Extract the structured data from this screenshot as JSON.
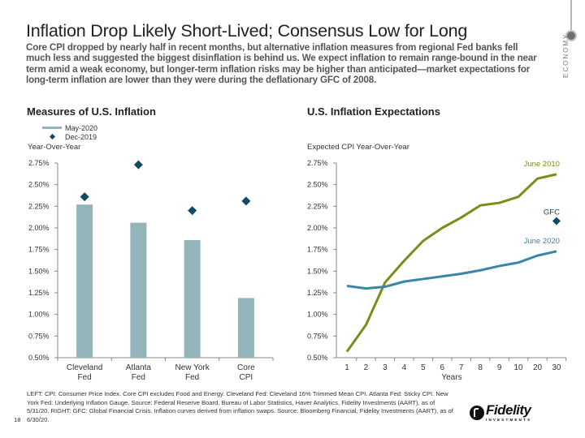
{
  "header": {
    "title": "Inflation Drop Likely Short-Lived; Consensus Low for Long",
    "subtitle": "Core CPI dropped by nearly half in recent months, but alternative inflation measures from regional Fed banks fell much less and suggested the biggest disinflation is behind us. We expect inflation to remain range-bound in the near term amid a weak economy, but longer-term inflation risks may be higher than anticipated—market expectations for long-term inflation are lower than they were during the deflationary GFC of 2008.",
    "section_label": "ECONOMY"
  },
  "colors": {
    "bar": "#93b4b8",
    "diamond": "#124a66",
    "june2010": "#7a8c1c",
    "june2020": "#3a86a8",
    "gfc": "#124a66",
    "axis": "#888888"
  },
  "chart_data": [
    {
      "type": "bar",
      "title": "Measures of U.S. Inflation",
      "ylabel": "Year-Over-Year",
      "xlabel": "",
      "ylim": [
        0.5,
        2.75
      ],
      "yticks": [
        "2.75%",
        "2.50%",
        "2.25%",
        "2.00%",
        "1.75%",
        "1.50%",
        "1.25%",
        "1.00%",
        "0.75%",
        "0.50%"
      ],
      "ytick_values": [
        2.75,
        2.5,
        2.25,
        2.0,
        1.75,
        1.5,
        1.25,
        1.0,
        0.75,
        0.5
      ],
      "categories": [
        [
          "Cleveland",
          "Fed"
        ],
        [
          "Atlanta",
          "Fed"
        ],
        [
          "New York",
          "Fed"
        ],
        [
          "Core",
          "CPI"
        ]
      ],
      "legend": {
        "placement": "top-left",
        "entries": [
          {
            "name": "May-2020",
            "marker": "bar"
          },
          {
            "name": "Dec-2019",
            "marker": "diamond"
          }
        ]
      },
      "series": [
        {
          "name": "May-2020",
          "kind": "bar",
          "values": [
            2.27,
            2.06,
            1.86,
            1.19
          ]
        },
        {
          "name": "Dec-2019",
          "kind": "diamond",
          "values": [
            2.36,
            2.73,
            2.2,
            2.31
          ]
        }
      ]
    },
    {
      "type": "line",
      "title": "U.S. Inflation Expectations",
      "ylabel": "Expected CPI Year-Over-Year",
      "xlabel": "Years",
      "ylim": [
        0.5,
        2.75
      ],
      "yticks": [
        "2.75%",
        "2.50%",
        "2.25%",
        "2.00%",
        "1.75%",
        "1.50%",
        "1.25%",
        "1.00%",
        "0.75%",
        "0.50%"
      ],
      "ytick_values": [
        2.75,
        2.5,
        2.25,
        2.0,
        1.75,
        1.5,
        1.25,
        1.0,
        0.75,
        0.5
      ],
      "categories": [
        "1",
        "2",
        "3",
        "4",
        "5",
        "6",
        "7",
        "8",
        "9",
        "10",
        "20",
        "30"
      ],
      "series": [
        {
          "name": "June 2010",
          "label": "June 2010",
          "values": [
            0.57,
            0.88,
            1.37,
            1.62,
            1.85,
            2.0,
            2.12,
            2.26,
            2.29,
            2.36,
            2.57,
            2.62
          ]
        },
        {
          "name": "June 2020",
          "label": "June 2020",
          "values": [
            1.33,
            1.3,
            1.32,
            1.38,
            1.41,
            1.44,
            1.47,
            1.51,
            1.56,
            1.6,
            1.68,
            1.73
          ]
        },
        {
          "name": "GFC",
          "label": "GFC",
          "kind": "diamond",
          "x": "30",
          "value": 2.08
        }
      ]
    }
  ],
  "footnote": "LEFT: CPI: Consumer Price Index. Core CPI excludes Food and Energy. Cleveland Fed: Cleveland 16% Trimmed Mean CPI. Atlanta Fed: Sticky CPI. New York Fed: Underlying Inflation Gauge. Source: Federal Reserve Board, Bureau of Labor Statistics, Haver Analytics, Fidelity Investments (AART), as of 5/31/20. RIGHT: GFC: Global Financial Crisis. Inflation curves derived from inflation swaps. Source: Bloomberg Financial, Fidelity Investments (AART), as of 6/30/20.",
  "page_number": "18",
  "logo": {
    "name": "Fidelity",
    "sub": "INVESTMENTS"
  }
}
